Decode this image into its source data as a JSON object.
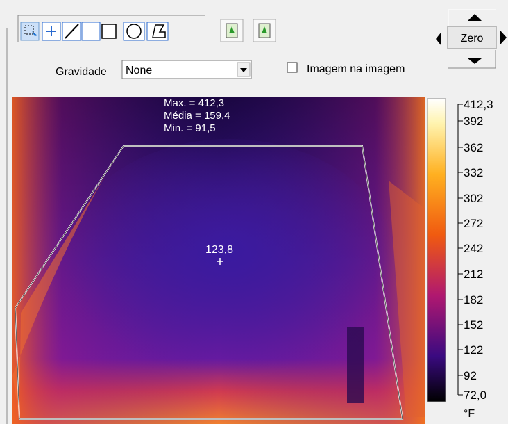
{
  "controls": {
    "zero_button": "Zero",
    "gravity_label": "Gravidade",
    "gravity_value": "None",
    "pip_label": "Imagem na imagem"
  },
  "image": {
    "stats": [
      "Max. = 412,3",
      "Média = 159,4",
      "Min. = 91,5"
    ],
    "spot_value": "123,8"
  },
  "scale": {
    "labels": [
      "412,3",
      "392",
      "362",
      "332",
      "302",
      "272",
      "242",
      "212",
      "182",
      "152",
      "122",
      "92",
      "72,0"
    ],
    "unit": "°F"
  }
}
